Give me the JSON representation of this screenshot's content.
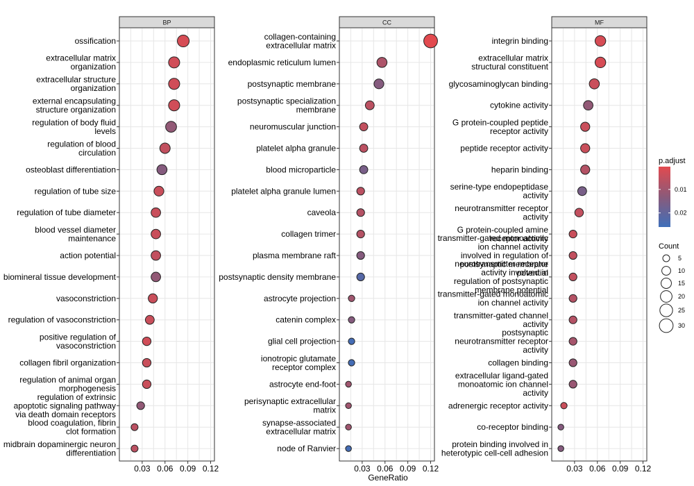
{
  "chart_data": {
    "type": "scatter",
    "xlabel": "GeneRatio",
    "xlim": [
      0,
      0.125
    ],
    "xticks": [
      0.03,
      0.06,
      0.09,
      0.12
    ],
    "xtick_labels": [
      "0.03",
      "0.06",
      "0.09",
      "0.12"
    ],
    "panels": [
      {
        "name": "BP",
        "terms": [
          {
            "label": "ossification",
            "gene_ratio": 0.084,
            "count": 21,
            "p_adjust": 0.002
          },
          {
            "label": "extracellular matrix\norganization",
            "gene_ratio": 0.072,
            "count": 18,
            "p_adjust": 0.003
          },
          {
            "label": "extracellular structure\norganization",
            "gene_ratio": 0.072,
            "count": 18,
            "p_adjust": 0.003
          },
          {
            "label": "external encapsulating\nstructure organization",
            "gene_ratio": 0.072,
            "count": 18,
            "p_adjust": 0.003
          },
          {
            "label": "regulation of body fluid\nlevels",
            "gene_ratio": 0.068,
            "count": 17,
            "p_adjust": 0.012
          },
          {
            "label": "regulation of blood\ncirculation",
            "gene_ratio": 0.06,
            "count": 15,
            "p_adjust": 0.005
          },
          {
            "label": "osteoblast differentiation",
            "gene_ratio": 0.056,
            "count": 14,
            "p_adjust": 0.014
          },
          {
            "label": "regulation of tube size",
            "gene_ratio": 0.052,
            "count": 13,
            "p_adjust": 0.004
          },
          {
            "label": "regulation of tube diameter",
            "gene_ratio": 0.048,
            "count": 12,
            "p_adjust": 0.004
          },
          {
            "label": "blood vessel diameter\nmaintenance",
            "gene_ratio": 0.048,
            "count": 12,
            "p_adjust": 0.004
          },
          {
            "label": "action potential",
            "gene_ratio": 0.048,
            "count": 12,
            "p_adjust": 0.005
          },
          {
            "label": "biomineral tissue development",
            "gene_ratio": 0.048,
            "count": 12,
            "p_adjust": 0.012
          },
          {
            "label": "vasoconstriction",
            "gene_ratio": 0.044,
            "count": 11,
            "p_adjust": 0.004
          },
          {
            "label": "regulation of vasoconstriction",
            "gene_ratio": 0.04,
            "count": 10,
            "p_adjust": 0.004
          },
          {
            "label": "positive regulation of\nvasoconstriction",
            "gene_ratio": 0.036,
            "count": 9,
            "p_adjust": 0.003
          },
          {
            "label": "collagen fibril organization",
            "gene_ratio": 0.036,
            "count": 9,
            "p_adjust": 0.004
          },
          {
            "label": "regulation of animal organ\nmorphogenesis",
            "gene_ratio": 0.036,
            "count": 9,
            "p_adjust": 0.004
          },
          {
            "label": "regulation of extrinsic\napoptotic signaling pathway\nvia death domain receptors",
            "gene_ratio": 0.028,
            "count": 7,
            "p_adjust": 0.012
          },
          {
            "label": "blood coagulation, fibrin\nclot formation",
            "gene_ratio": 0.02,
            "count": 5,
            "p_adjust": 0.006
          },
          {
            "label": "midbrain dopaminergic neuron\ndifferentiation",
            "gene_ratio": 0.02,
            "count": 5,
            "p_adjust": 0.006
          }
        ]
      },
      {
        "name": "CC",
        "terms": [
          {
            "label": "collagen-containing\nextracellular matrix",
            "gene_ratio": 0.12,
            "count": 30,
            "p_adjust": 0.0003
          },
          {
            "label": "endoplasmic reticulum lumen",
            "gene_ratio": 0.056,
            "count": 14,
            "p_adjust": 0.008
          },
          {
            "label": "postsynaptic membrane",
            "gene_ratio": 0.052,
            "count": 13,
            "p_adjust": 0.014
          },
          {
            "label": "postsynaptic specialization\nmembrane",
            "gene_ratio": 0.04,
            "count": 10,
            "p_adjust": 0.006
          },
          {
            "label": "neuromuscular junction",
            "gene_ratio": 0.032,
            "count": 8,
            "p_adjust": 0.005
          },
          {
            "label": "platelet alpha granule",
            "gene_ratio": 0.032,
            "count": 8,
            "p_adjust": 0.006
          },
          {
            "label": "blood microparticle",
            "gene_ratio": 0.032,
            "count": 8,
            "p_adjust": 0.016
          },
          {
            "label": "platelet alpha granule lumen",
            "gene_ratio": 0.028,
            "count": 7,
            "p_adjust": 0.006
          },
          {
            "label": "caveola",
            "gene_ratio": 0.028,
            "count": 7,
            "p_adjust": 0.007
          },
          {
            "label": "collagen trimer",
            "gene_ratio": 0.028,
            "count": 7,
            "p_adjust": 0.007
          },
          {
            "label": "plasma membrane raft",
            "gene_ratio": 0.028,
            "count": 7,
            "p_adjust": 0.014
          },
          {
            "label": "postsynaptic density membrane",
            "gene_ratio": 0.028,
            "count": 7,
            "p_adjust": 0.022
          },
          {
            "label": "astrocyte projection",
            "gene_ratio": 0.016,
            "count": 4,
            "p_adjust": 0.01
          },
          {
            "label": "catenin complex",
            "gene_ratio": 0.016,
            "count": 4,
            "p_adjust": 0.014
          },
          {
            "label": "glial cell projection",
            "gene_ratio": 0.016,
            "count": 4,
            "p_adjust": 0.025
          },
          {
            "label": "ionotropic glutamate\nreceptor complex",
            "gene_ratio": 0.016,
            "count": 4,
            "p_adjust": 0.025
          },
          {
            "label": "astrocyte end-foot",
            "gene_ratio": 0.012,
            "count": 3,
            "p_adjust": 0.01
          },
          {
            "label": "perisynaptic extracellular\nmatrix",
            "gene_ratio": 0.012,
            "count": 3,
            "p_adjust": 0.01
          },
          {
            "label": "synapse-associated\nextracellular matrix",
            "gene_ratio": 0.012,
            "count": 3,
            "p_adjust": 0.01
          },
          {
            "label": "node of Ranvier",
            "gene_ratio": 0.012,
            "count": 3,
            "p_adjust": 0.025
          }
        ]
      },
      {
        "name": "MF",
        "terms": [
          {
            "label": "integrin binding",
            "gene_ratio": 0.064,
            "count": 16,
            "p_adjust": 0.002
          },
          {
            "label": "extracellular matrix\nstructural constituent",
            "gene_ratio": 0.064,
            "count": 16,
            "p_adjust": 0.002
          },
          {
            "label": "glycosaminoglycan binding",
            "gene_ratio": 0.056,
            "count": 14,
            "p_adjust": 0.004
          },
          {
            "label": "cytokine activity",
            "gene_ratio": 0.048,
            "count": 12,
            "p_adjust": 0.012
          },
          {
            "label": "G protein-coupled peptide\nreceptor activity",
            "gene_ratio": 0.044,
            "count": 11,
            "p_adjust": 0.004
          },
          {
            "label": "peptide receptor activity",
            "gene_ratio": 0.044,
            "count": 11,
            "p_adjust": 0.004
          },
          {
            "label": "heparin binding",
            "gene_ratio": 0.044,
            "count": 11,
            "p_adjust": 0.007
          },
          {
            "label": "serine-type endopeptidase\nactivity",
            "gene_ratio": 0.04,
            "count": 10,
            "p_adjust": 0.016
          },
          {
            "label": "neurotransmitter receptor\nactivity",
            "gene_ratio": 0.036,
            "count": 9,
            "p_adjust": 0.005
          },
          {
            "label": "G protein-coupled amine\nreceptor activity",
            "gene_ratio": 0.028,
            "count": 7,
            "p_adjust": 0.004
          },
          {
            "label": "transmitter-gated monoatomic\nion channel activity\ninvolved in regulation of\npostsynaptic membrane\npotential",
            "gene_ratio": 0.028,
            "count": 7,
            "p_adjust": 0.005
          },
          {
            "label": "neurotransmitter receptor\nactivity involved in\nregulation of postsynaptic\nmembrane potential",
            "gene_ratio": 0.028,
            "count": 7,
            "p_adjust": 0.005
          },
          {
            "label": "transmitter-gated monoatomic\nion channel activity",
            "gene_ratio": 0.028,
            "count": 7,
            "p_adjust": 0.007
          },
          {
            "label": "transmitter-gated channel\nactivity",
            "gene_ratio": 0.028,
            "count": 7,
            "p_adjust": 0.007
          },
          {
            "label": "postsynaptic\nneurotransmitter receptor\nactivity",
            "gene_ratio": 0.028,
            "count": 7,
            "p_adjust": 0.009
          },
          {
            "label": "collagen binding",
            "gene_ratio": 0.028,
            "count": 7,
            "p_adjust": 0.011
          },
          {
            "label": "extracellular ligand-gated\nmonoatomic ion channel\nactivity",
            "gene_ratio": 0.028,
            "count": 7,
            "p_adjust": 0.011
          },
          {
            "label": "adrenergic receptor activity",
            "gene_ratio": 0.016,
            "count": 4,
            "p_adjust": 0.004
          },
          {
            "label": "co-receptor binding",
            "gene_ratio": 0.012,
            "count": 3,
            "p_adjust": 0.014
          },
          {
            "label": "protein binding involved in\nheterotypic cell-cell adhesion",
            "gene_ratio": 0.012,
            "count": 3,
            "p_adjust": 0.014
          }
        ]
      }
    ],
    "color_legend": {
      "title": "p.adjust",
      "range": [
        0.0003,
        0.026
      ],
      "ticks": [
        0.01,
        0.02
      ],
      "tick_labels": [
        "0.01",
        "0.02"
      ],
      "low_color": "#e24a4f",
      "mid_color": "#8a5a7a",
      "high_color": "#3f6fba"
    },
    "size_legend": {
      "title": "Count",
      "values": [
        5,
        10,
        15,
        20,
        25,
        30
      ],
      "labels": [
        "5",
        "10",
        "15",
        "20",
        "25",
        "30"
      ]
    }
  }
}
